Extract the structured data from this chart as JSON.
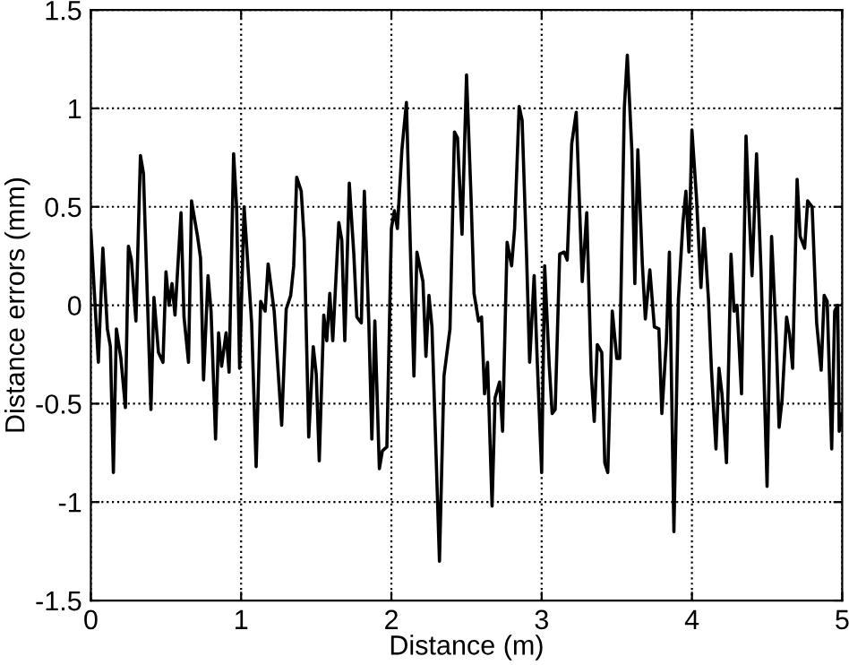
{
  "chart_data": {
    "type": "line",
    "xlabel": "Distance (m)",
    "ylabel": "Distance errors (mm)",
    "xlim": [
      0,
      5
    ],
    "ylim": [
      -1.5,
      1.5
    ],
    "xticks": [
      0,
      1,
      2,
      3,
      4,
      5
    ],
    "yticks": [
      -1.5,
      -1,
      -0.5,
      0,
      0.5,
      1,
      1.5
    ],
    "grid": true,
    "line_style": "solid",
    "marker": "none",
    "series": [
      {
        "color": "#000000",
        "x": [
          0,
          0.05,
          0.08,
          0.11,
          0.13,
          0.15,
          0.17,
          0.2,
          0.23,
          0.25,
          0.27,
          0.3,
          0.33,
          0.35,
          0.4,
          0.42,
          0.45,
          0.48,
          0.5,
          0.52,
          0.54,
          0.56,
          0.6,
          0.62,
          0.65,
          0.67,
          0.71,
          0.73,
          0.75,
          0.78,
          0.8,
          0.83,
          0.85,
          0.87,
          0.9,
          0.92,
          0.95,
          0.97,
          0.99,
          1.02,
          1.07,
          1.1,
          1.13,
          1.16,
          1.18,
          1.22,
          1.27,
          1.3,
          1.33,
          1.35,
          1.37,
          1.4,
          1.42,
          1.45,
          1.48,
          1.5,
          1.52,
          1.55,
          1.57,
          1.59,
          1.61,
          1.65,
          1.67,
          1.69,
          1.72,
          1.75,
          1.77,
          1.8,
          1.82,
          1.85,
          1.87,
          1.89,
          1.92,
          1.94,
          1.97,
          2.0,
          2.02,
          2.04,
          2.07,
          2.1,
          2.14,
          2.15,
          2.17,
          2.21,
          2.23,
          2.25,
          2.27,
          2.32,
          2.35,
          2.39,
          2.42,
          2.44,
          2.47,
          2.5,
          2.53,
          2.55,
          2.58,
          2.6,
          2.62,
          2.64,
          2.67,
          2.69,
          2.72,
          2.74,
          2.77,
          2.8,
          2.82,
          2.85,
          2.87,
          2.9,
          2.92,
          2.95,
          2.97,
          3.0,
          3.02,
          3.05,
          3.07,
          3.09,
          3.12,
          3.15,
          3.17,
          3.2,
          3.23,
          3.27,
          3.3,
          3.33,
          3.35,
          3.37,
          3.4,
          3.42,
          3.44,
          3.47,
          3.5,
          3.52,
          3.55,
          3.57,
          3.6,
          3.62,
          3.64,
          3.67,
          3.69,
          3.72,
          3.75,
          3.78,
          3.8,
          3.83,
          3.85,
          3.88,
          3.91,
          3.94,
          3.96,
          3.98,
          4.0,
          4.03,
          4.06,
          4.08,
          4.11,
          4.13,
          4.16,
          4.18,
          4.2,
          4.23,
          4.26,
          4.28,
          4.3,
          4.33,
          4.36,
          4.38,
          4.4,
          4.43,
          4.46,
          4.5,
          4.53,
          4.56,
          4.58,
          4.6,
          4.63,
          4.65,
          4.67,
          4.7,
          4.72,
          4.75,
          4.77,
          4.8,
          4.83,
          4.86,
          4.88,
          4.9,
          4.93,
          4.95,
          4.97,
          4.98,
          5.0
        ],
        "values": [
          0.38,
          -0.29,
          0.29,
          -0.12,
          -0.21,
          -0.85,
          -0.12,
          -0.27,
          -0.52,
          0.3,
          0.23,
          -0.08,
          0.76,
          0.67,
          -0.53,
          0.04,
          -0.24,
          -0.29,
          0.17,
          0.0,
          0.11,
          -0.05,
          0.47,
          -0.06,
          -0.29,
          0.53,
          0.35,
          0.24,
          -0.38,
          0.15,
          -0.03,
          -0.68,
          -0.14,
          -0.31,
          -0.14,
          -0.34,
          0.77,
          0.5,
          -0.32,
          0.5,
          -0.09,
          -0.82,
          0.02,
          -0.03,
          0.21,
          -0.03,
          -0.61,
          -0.02,
          0.05,
          0.2,
          0.65,
          0.58,
          0.33,
          -0.67,
          -0.21,
          -0.35,
          -0.79,
          -0.05,
          -0.18,
          0.06,
          -0.18,
          0.42,
          0.33,
          -0.18,
          0.62,
          0.26,
          -0.06,
          -0.09,
          0.58,
          -0.09,
          -0.68,
          -0.08,
          -0.83,
          -0.74,
          -0.72,
          0.39,
          0.48,
          0.39,
          0.79,
          1.03,
          -0.09,
          -0.36,
          0.27,
          0.12,
          -0.26,
          0.05,
          -0.11,
          -1.3,
          -0.36,
          -0.12,
          0.88,
          0.85,
          0.36,
          1.17,
          0.55,
          0.06,
          -0.08,
          -0.06,
          -0.45,
          -0.29,
          -1.02,
          -0.47,
          -0.39,
          -0.64,
          0.32,
          0.2,
          0.39,
          1.01,
          0.94,
          0.24,
          -0.29,
          0.15,
          -0.27,
          -0.85,
          0.2,
          -0.3,
          -0.55,
          -0.53,
          0.26,
          0.27,
          0.23,
          0.82,
          0.98,
          0.12,
          0.47,
          -0.35,
          -0.59,
          -0.2,
          -0.24,
          -0.8,
          -0.85,
          -0.03,
          -0.27,
          -0.27,
          1.0,
          1.27,
          0.79,
          0.11,
          0.79,
          0.21,
          -0.07,
          0.18,
          -0.11,
          -0.12,
          -0.55,
          -0.18,
          0.27,
          -1.15,
          0.03,
          0.42,
          0.58,
          0.27,
          0.89,
          0.55,
          0.09,
          0.39,
          0.03,
          -0.33,
          -0.73,
          -0.32,
          -0.45,
          -0.8,
          0.26,
          -0.03,
          0.0,
          -0.45,
          0.86,
          0.48,
          0.15,
          0.77,
          0.17,
          -0.92,
          0.35,
          -0.15,
          -0.62,
          -0.48,
          -0.06,
          -0.15,
          -0.32,
          0.64,
          0.35,
          0.29,
          0.53,
          0.5,
          -0.09,
          -0.33,
          0.05,
          0.02,
          -0.73,
          -0.03,
          0.0,
          -0.64,
          -0.55
        ]
      }
    ]
  }
}
